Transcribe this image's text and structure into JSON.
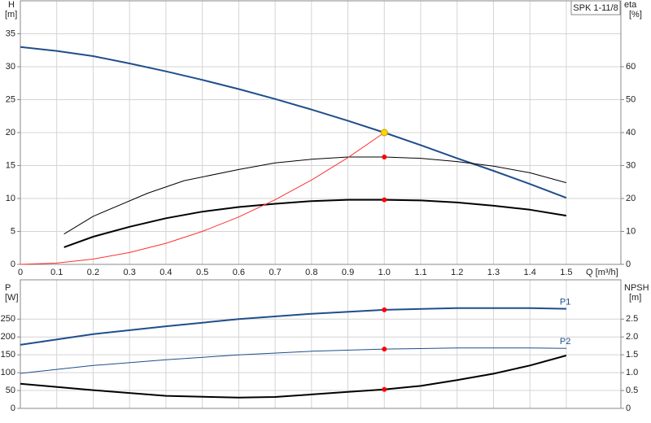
{
  "chart_data": [
    {
      "type": "line",
      "title": "SPK 1-11/8",
      "ylabel": [
        "H",
        "[m]"
      ],
      "y2label": [
        "eta",
        "[%]"
      ],
      "xlabel": "Q [m³/h]",
      "xlim": [
        0,
        1.65
      ],
      "xticks": [
        0,
        0.1,
        0.2,
        0.3,
        0.4,
        0.5,
        0.6,
        0.7,
        0.8,
        0.9,
        {
          "value": 1,
          "label": "1.0"
        },
        1.1,
        1.2,
        1.3,
        1.4,
        1.5
      ],
      "ylim": [
        0,
        40
      ],
      "yticks": [
        0,
        5,
        10,
        15,
        20,
        25,
        30,
        35
      ],
      "y2lim": [
        0,
        80
      ],
      "y2ticks": [
        0,
        10,
        20,
        30,
        40,
        50,
        60
      ],
      "grid": true,
      "series": [
        {
          "color": "#1f4e8c",
          "linewidth": 2,
          "x": [
            0,
            0.1,
            0.2,
            0.3,
            0.4,
            0.5,
            0.6,
            0.7,
            0.8,
            0.9,
            1.0,
            1.1,
            1.2,
            1.3,
            1.4,
            1.5
          ],
          "values": [
            33,
            32.4,
            31.6,
            30.5,
            29.3,
            28.0,
            26.6,
            25.1,
            23.5,
            21.8,
            20,
            18.1,
            16.1,
            14.2,
            12.2,
            10.1
          ]
        },
        {
          "color": "#000000",
          "linewidth": 1,
          "axis": "y2",
          "x": [
            0.12,
            0.2,
            0.35,
            0.45,
            0.6,
            0.7,
            0.8,
            0.9,
            1.0,
            1.1,
            1.2,
            1.3,
            1.4,
            1.5
          ],
          "values": [
            9.2,
            14.6,
            21.6,
            25.4,
            28.8,
            30.8,
            31.9,
            32.6,
            32.6,
            32.2,
            31.2,
            29.8,
            27.8,
            24.8
          ]
        },
        {
          "color": "#000000",
          "linewidth": 2,
          "axis": "y2",
          "x": [
            0.12,
            0.2,
            0.3,
            0.4,
            0.5,
            0.6,
            0.7,
            0.8,
            0.9,
            1.0,
            1.1,
            1.2,
            1.3,
            1.4,
            1.5
          ],
          "values": [
            5.2,
            8.4,
            11.4,
            14.0,
            16.0,
            17.4,
            18.4,
            19.2,
            19.6,
            19.6,
            19.4,
            18.8,
            17.8,
            16.6,
            14.8
          ]
        },
        {
          "color": "#ff3030",
          "linewidth": 1,
          "x": [
            0,
            0.1,
            0.2,
            0.3,
            0.4,
            0.5,
            0.6,
            0.7,
            0.8,
            0.9,
            1.0
          ],
          "values": [
            0,
            0.2,
            0.8,
            1.8,
            3.2,
            5.0,
            7.2,
            9.8,
            12.8,
            16.2,
            20
          ]
        }
      ],
      "markers": [
        {
          "x": 1.0,
          "y": 20,
          "color": "#ffd700"
        },
        {
          "x": 1.0,
          "y": 32.6,
          "axis": "y2",
          "color": "#ff0000"
        },
        {
          "x": 1.0,
          "y": 19.6,
          "axis": "y2",
          "color": "#ff0000"
        }
      ]
    },
    {
      "type": "line",
      "ylabel": [
        "P",
        "[W]"
      ],
      "y2label": [
        "NPSH",
        "[m]"
      ],
      "xlim": [
        0,
        1.65
      ],
      "ylim": [
        0,
        360
      ],
      "yticks": [
        0,
        50,
        100,
        150,
        200,
        250
      ],
      "y2lim": [
        0,
        3.6
      ],
      "y2ticks": [
        0,
        0.5,
        {
          "value": 1,
          "label": "1.0"
        },
        1.5,
        {
          "value": 2,
          "label": "2.0"
        },
        2.5
      ],
      "grid": true,
      "series": [
        {
          "name": "P1",
          "color": "#1f4e8c",
          "linewidth": 2,
          "x": [
            0,
            0.2,
            0.4,
            0.6,
            0.8,
            1.0,
            1.2,
            1.4,
            1.5
          ],
          "values": [
            178,
            208,
            230,
            250,
            265,
            276,
            281,
            281,
            279
          ]
        },
        {
          "name": "P2",
          "color": "#1f4e8c",
          "linewidth": 1,
          "x": [
            0,
            0.2,
            0.4,
            0.6,
            0.8,
            1.0,
            1.2,
            1.4,
            1.5
          ],
          "values": [
            98,
            120,
            136,
            150,
            160,
            166,
            169,
            169,
            168
          ]
        },
        {
          "color": "#000000",
          "linewidth": 2,
          "axis": "y2",
          "x": [
            0,
            0.2,
            0.4,
            0.6,
            0.7,
            0.8,
            0.9,
            1.0,
            1.1,
            1.2,
            1.3,
            1.4,
            1.5
          ],
          "values": [
            0.69,
            0.51,
            0.35,
            0.3,
            0.32,
            0.39,
            0.46,
            0.53,
            0.63,
            0.79,
            0.97,
            1.2,
            1.48
          ]
        }
      ],
      "markers": [
        {
          "x": 1.0,
          "y": 276,
          "color": "#ff0000"
        },
        {
          "x": 1.0,
          "y": 166,
          "color": "#ff0000"
        },
        {
          "x": 1.0,
          "y": 0.53,
          "axis": "y2",
          "color": "#ff0000"
        }
      ]
    }
  ]
}
